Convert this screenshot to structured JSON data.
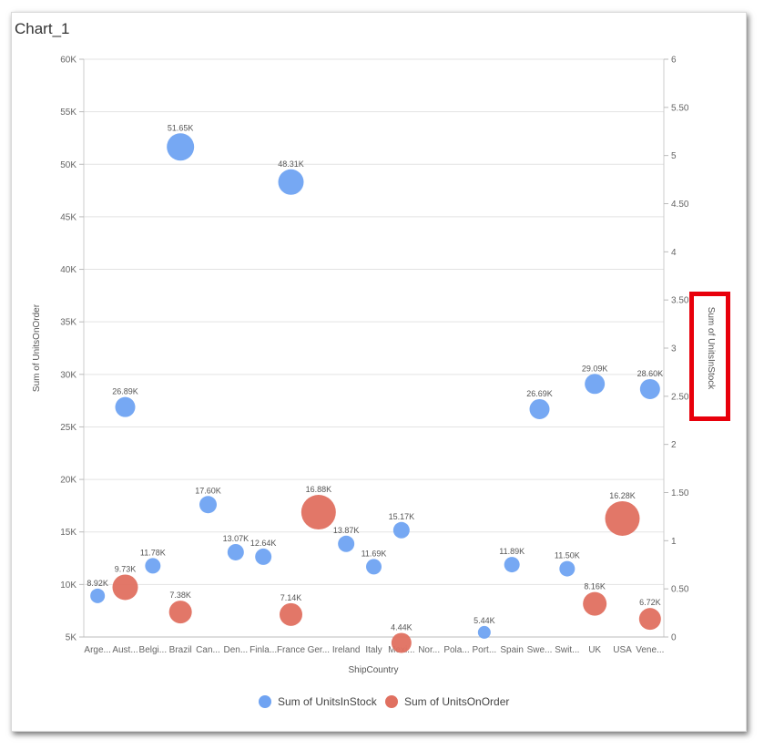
{
  "chart": {
    "title": "Chart_1"
  },
  "chart_data": {
    "type": "scatter",
    "bubble": true,
    "title": "Chart_1",
    "xlabel": "ShipCountry",
    "ylabel": "Sum of UnitsOnOrder",
    "y2label": "Sum of UnitsInStock",
    "categories": [
      "Arge...",
      "Aust...",
      "Belgi...",
      "Brazil",
      "Can...",
      "Den...",
      "Finla...",
      "France",
      "Ger...",
      "Ireland",
      "Italy",
      "Mexi...",
      "Nor...",
      "Pola...",
      "Port...",
      "Spain",
      "Swe...",
      "Swit...",
      "UK",
      "USA",
      "Vene..."
    ],
    "ylim": [
      5000,
      60000
    ],
    "yticks": [
      "5K",
      "10K",
      "15K",
      "20K",
      "25K",
      "30K",
      "35K",
      "40K",
      "45K",
      "50K",
      "55K",
      "60K"
    ],
    "y2lim": [
      0,
      6
    ],
    "y2ticks": [
      "0",
      "0.50",
      "1",
      "1.50",
      "2",
      "2.50",
      "3",
      "3.50",
      "4",
      "4.50",
      "5",
      "5.50",
      "6"
    ],
    "grid": true,
    "legend_position": "bottom",
    "series": [
      {
        "name": "Sum of UnitsInStock",
        "color": "#6fa3f2",
        "points": [
          {
            "category": "Arge...",
            "y": 8920,
            "label": "8.92K",
            "size": 8
          },
          {
            "category": "Aust...",
            "y": 26890,
            "label": "26.89K",
            "size": 11
          },
          {
            "category": "Belgi...",
            "y": 11780,
            "label": "11.78K",
            "size": 8.5
          },
          {
            "category": "Brazil",
            "y": 51650,
            "label": "51.65K",
            "size": 15
          },
          {
            "category": "Can...",
            "y": 17600,
            "label": "17.60K",
            "size": 9.5
          },
          {
            "category": "Den...",
            "y": 13070,
            "label": "13.07K",
            "size": 9
          },
          {
            "category": "Finla...",
            "y": 12640,
            "label": "12.64K",
            "size": 9
          },
          {
            "category": "France",
            "y": 48310,
            "label": "48.31K",
            "size": 14
          },
          {
            "category": "Ireland",
            "y": 13870,
            "label": "13.87K",
            "size": 9
          },
          {
            "category": "Italy",
            "y": 11690,
            "label": "11.69K",
            "size": 8.5
          },
          {
            "category": "Mexi...",
            "y": 15170,
            "label": "15.17K",
            "size": 9
          },
          {
            "category": "Port...",
            "y": 5440,
            "label": "5.44K",
            "size": 7
          },
          {
            "category": "Spain",
            "y": 11890,
            "label": "11.89K",
            "size": 8.5
          },
          {
            "category": "Swe...",
            "y": 26690,
            "label": "26.69K",
            "size": 11
          },
          {
            "category": "Swit...",
            "y": 11500,
            "label": "11.50K",
            "size": 8.5
          },
          {
            "category": "UK",
            "y": 29090,
            "label": "29.09K",
            "size": 11
          },
          {
            "category": "Vene...",
            "y": 28600,
            "label": "28.60K",
            "size": 11
          }
        ]
      },
      {
        "name": "Sum of UnitsOnOrder",
        "color": "#e07060",
        "points": [
          {
            "category": "Aust...",
            "y": 9730,
            "label": "9.73K",
            "size": 14
          },
          {
            "category": "Brazil",
            "y": 7380,
            "label": "7.38K",
            "size": 12.5
          },
          {
            "category": "France",
            "y": 7140,
            "label": "7.14K",
            "size": 12.5
          },
          {
            "category": "Ger...",
            "y": 16880,
            "label": "16.88K",
            "size": 19
          },
          {
            "category": "Mexi...",
            "y": 4440,
            "label": "4.44K",
            "size": 11
          },
          {
            "category": "UK",
            "y": 8160,
            "label": "8.16K",
            "size": 13
          },
          {
            "category": "USA",
            "y": 16280,
            "label": "16.28K",
            "size": 19
          },
          {
            "category": "Vene...",
            "y": 6720,
            "label": "6.72K",
            "size": 12
          }
        ]
      }
    ]
  },
  "highlight_color": "#e8000b"
}
